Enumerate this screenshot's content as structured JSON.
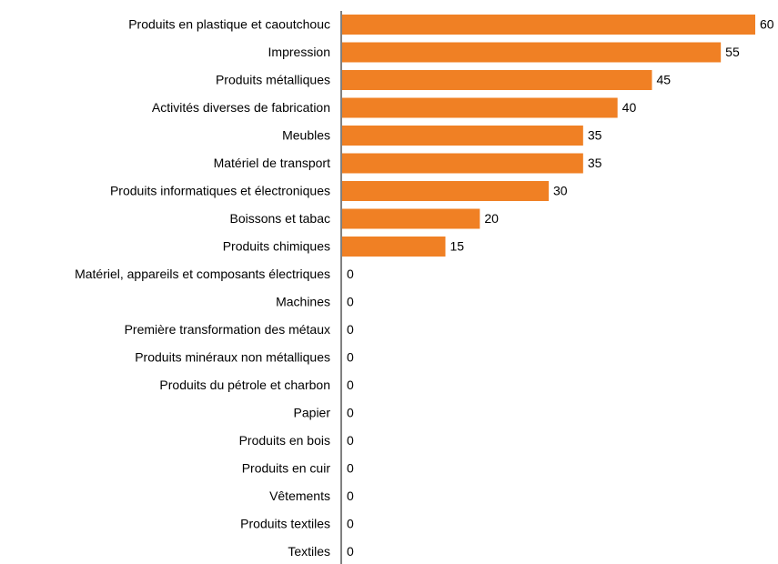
{
  "chart_data": {
    "type": "bar",
    "orientation": "horizontal",
    "categories": [
      "Produits en plastique et caoutchouc",
      "Impression",
      "Produits métalliques",
      "Activités diverses de fabrication",
      "Meubles",
      "Matériel de transport",
      "Produits informatiques et électroniques",
      "Boissons et tabac",
      "Produits chimiques",
      "Matériel, appareils et composants électriques",
      "Machines",
      "Première transformation des métaux",
      "Produits minéraux non métalliques",
      "Produits du pétrole et charbon",
      "Papier",
      "Produits en bois",
      "Produits en cuir",
      "Vêtements",
      "Produits textiles",
      "Textiles"
    ],
    "values": [
      60,
      55,
      45,
      40,
      35,
      35,
      30,
      20,
      15,
      0,
      0,
      0,
      0,
      0,
      0,
      0,
      0,
      0,
      0,
      0
    ],
    "color": "#f08024"
  }
}
